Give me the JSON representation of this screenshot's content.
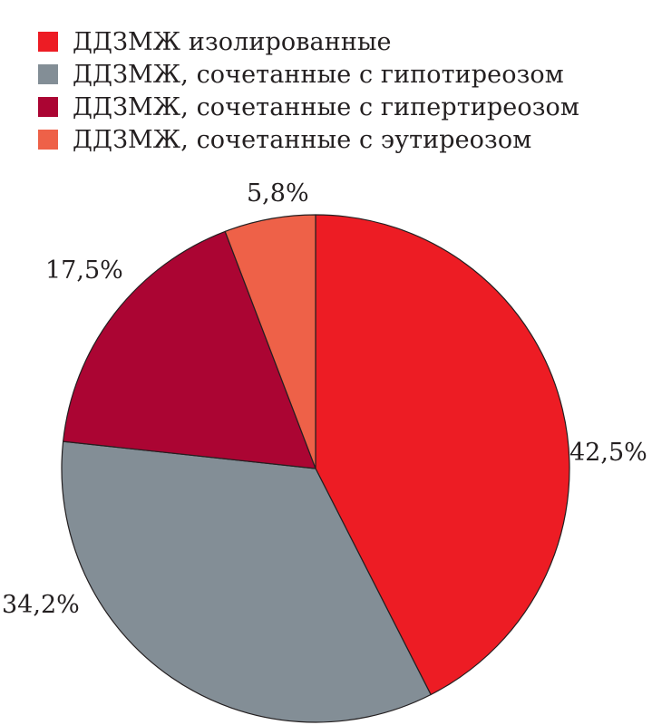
{
  "chart_data": {
    "type": "pie",
    "title": "",
    "legend_position": "top",
    "series": [
      {
        "name": "ДДЗМЖ изолированные",
        "value": 42.5,
        "label": "42,5%",
        "color": "#ed1c24"
      },
      {
        "name": "ДДЗМЖ, сочетанные с гипотиреозом",
        "value": 34.2,
        "label": "34,2%",
        "color": "#838e96"
      },
      {
        "name": "ДДЗМЖ, сочетанные с гипертиреозом",
        "value": 17.5,
        "label": "17,5%",
        "color": "#ab0533"
      },
      {
        "name": "ДДЗМЖ, сочетанные с эутиреозом",
        "value": 5.8,
        "label": "5,8%",
        "color": "#ee6148"
      }
    ]
  }
}
